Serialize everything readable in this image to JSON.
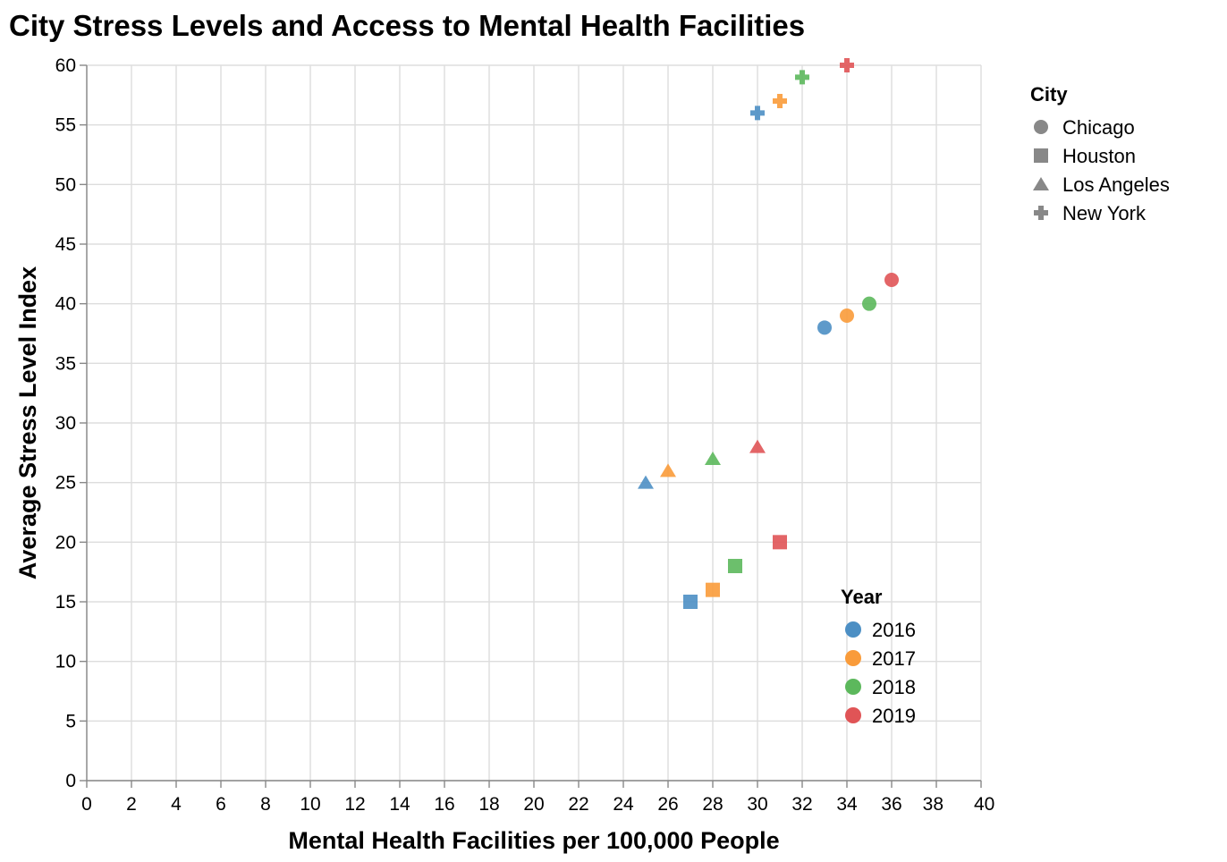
{
  "chart_data": {
    "type": "scatter",
    "title": "City Stress Levels and Access to Mental Health Facilities",
    "xlabel": "Mental Health Facilities per 100,000 People",
    "ylabel": "Average Stress Level Index",
    "xlim": [
      0,
      40
    ],
    "ylim": [
      0,
      60
    ],
    "x_ticks": [
      0,
      2,
      4,
      6,
      8,
      10,
      12,
      14,
      16,
      18,
      20,
      22,
      24,
      26,
      28,
      30,
      32,
      34,
      36,
      38,
      40
    ],
    "y_ticks": [
      0,
      5,
      10,
      15,
      20,
      25,
      30,
      35,
      40,
      45,
      50,
      55,
      60
    ],
    "grid": true,
    "shape_legend": {
      "title": "City",
      "placement": "top-right",
      "entries": [
        {
          "name": "Chicago",
          "shape": "circle"
        },
        {
          "name": "Houston",
          "shape": "square"
        },
        {
          "name": "Los Angeles",
          "shape": "triangle"
        },
        {
          "name": "New York",
          "shape": "cross"
        }
      ]
    },
    "color_legend": {
      "title": "Year",
      "placement": "bottom-right",
      "entries": [
        {
          "name": "2016",
          "color": "#4c8fc4"
        },
        {
          "name": "2017",
          "color": "#f99b3a"
        },
        {
          "name": "2018",
          "color": "#5cb85c"
        },
        {
          "name": "2019",
          "color": "#e05456"
        }
      ]
    },
    "points": [
      {
        "city": "New York",
        "year": "2016",
        "x": 30,
        "y": 56
      },
      {
        "city": "New York",
        "year": "2017",
        "x": 31,
        "y": 57
      },
      {
        "city": "New York",
        "year": "2018",
        "x": 32,
        "y": 59
      },
      {
        "city": "New York",
        "year": "2019",
        "x": 34,
        "y": 60
      },
      {
        "city": "Chicago",
        "year": "2016",
        "x": 33,
        "y": 38
      },
      {
        "city": "Chicago",
        "year": "2017",
        "x": 34,
        "y": 39
      },
      {
        "city": "Chicago",
        "year": "2018",
        "x": 35,
        "y": 40
      },
      {
        "city": "Chicago",
        "year": "2019",
        "x": 36,
        "y": 42
      },
      {
        "city": "Los Angeles",
        "year": "2016",
        "x": 25,
        "y": 25
      },
      {
        "city": "Los Angeles",
        "year": "2017",
        "x": 26,
        "y": 26
      },
      {
        "city": "Los Angeles",
        "year": "2018",
        "x": 28,
        "y": 27
      },
      {
        "city": "Los Angeles",
        "year": "2019",
        "x": 30,
        "y": 28
      },
      {
        "city": "Houston",
        "year": "2016",
        "x": 27,
        "y": 15
      },
      {
        "city": "Houston",
        "year": "2017",
        "x": 28,
        "y": 16
      },
      {
        "city": "Houston",
        "year": "2018",
        "x": 29,
        "y": 18
      },
      {
        "city": "Houston",
        "year": "2019",
        "x": 31,
        "y": 20
      }
    ]
  }
}
